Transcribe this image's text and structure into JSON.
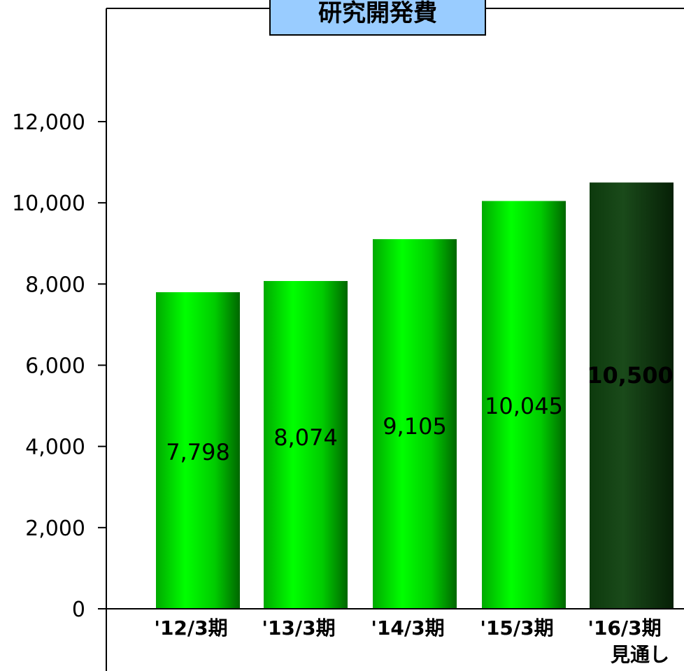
{
  "chart_data": {
    "type": "bar",
    "title": "研究開発費",
    "categories": [
      "'12/3期",
      "'13/3期",
      "'14/3期",
      "'15/3期",
      "'16/3期\n見通し"
    ],
    "values": [
      7798,
      8074,
      9105,
      10045,
      10500
    ],
    "data_labels": [
      "7,798",
      "8,074",
      "9,105",
      "10,045",
      "10,500"
    ],
    "highlight_index": 4,
    "ylim": [
      0,
      14000
    ],
    "yticks": [
      0,
      2000,
      4000,
      6000,
      8000,
      10000,
      12000
    ],
    "ytick_labels": [
      "0",
      "2,000",
      "4,000",
      "6,000",
      "8,000",
      "10,000",
      "12,000"
    ],
    "xlabel": "",
    "ylabel": "",
    "grid": false,
    "colors": {
      "bar_light": "#00ee00",
      "bar_dark": "#006600",
      "highlight_light": "#1a4a1a",
      "highlight_dark": "#0a2a0a",
      "title_bg": "#99ccff"
    }
  }
}
